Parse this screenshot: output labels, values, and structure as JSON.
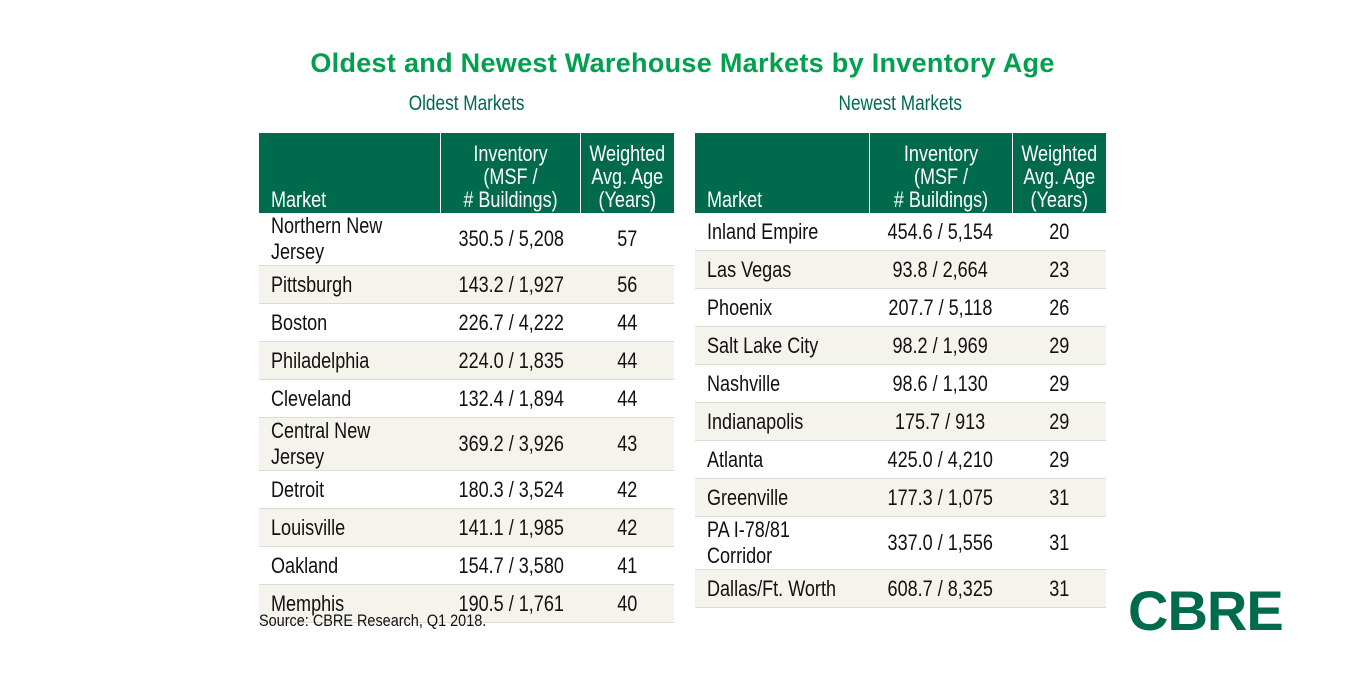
{
  "chart_data": {
    "type": "table",
    "title": "Oldest and Newest Warehouse Markets by Inventory Age",
    "tables": [
      {
        "subtitle": "Oldest Markets",
        "columns": [
          "Market",
          "Inventory (MSF / # Buildings)",
          "Weighted Avg. Age (Years)"
        ],
        "rows": [
          [
            "Northern New Jersey",
            "350.5 /  5,208",
            "57"
          ],
          [
            "Pittsburgh",
            "143.2 / 1,927",
            "56"
          ],
          [
            "Boston",
            "226.7 / 4,222",
            "44"
          ],
          [
            "Philadelphia",
            "224.0 / 1,835",
            "44"
          ],
          [
            "Cleveland",
            "132.4 / 1,894",
            "44"
          ],
          [
            "Central New Jersey",
            "369.2 / 3,926",
            "43"
          ],
          [
            "Detroit",
            "180.3 / 3,524",
            "42"
          ],
          [
            "Louisville",
            "141.1 / 1,985",
            "42"
          ],
          [
            "Oakland",
            "154.7 / 3,580",
            "41"
          ],
          [
            "Memphis",
            "190.5 / 1,761",
            "40"
          ]
        ]
      },
      {
        "subtitle": "Newest Markets",
        "columns": [
          "Market",
          "Inventory (MSF / # Buildings)",
          "Weighted Avg. Age (Years)"
        ],
        "rows": [
          [
            "Inland Empire",
            "454.6 / 5,154",
            "20"
          ],
          [
            "Las Vegas",
            "93.8 / 2,664",
            "23"
          ],
          [
            "Phoenix",
            "207.7 / 5,118",
            "26"
          ],
          [
            "Salt Lake City",
            "98.2 / 1,969",
            "29"
          ],
          [
            "Nashville",
            "98.6 / 1,130",
            "29"
          ],
          [
            "Indianapolis",
            "175.7 / 913",
            "29"
          ],
          [
            "Atlanta",
            "425.0 / 4,210",
            "29"
          ],
          [
            "Greenville",
            "177.3 / 1,075",
            "31"
          ],
          [
            "PA I-78/81 Corridor",
            "337.0 / 1,556",
            "31"
          ],
          [
            "Dallas/Ft. Worth",
            "608.7 / 8,325",
            "31"
          ]
        ]
      }
    ],
    "source": "Source: CBRE Research, Q1 2018."
  },
  "logo": "CBRE",
  "colors": {
    "title": "#00a04f",
    "header": "#006a4d",
    "stripe": "#f4f3ec"
  }
}
